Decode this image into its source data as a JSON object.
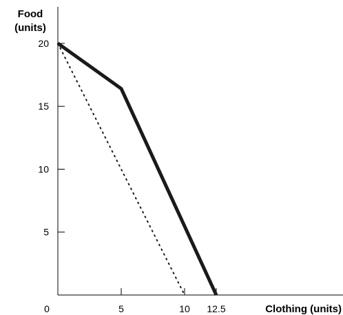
{
  "chart_data": {
    "type": "line",
    "xlabel": "Clothing (units)",
    "ylabel_lines": [
      "Food",
      "(units)"
    ],
    "xlim": [
      0,
      22.5
    ],
    "ylim": [
      0,
      22.9
    ],
    "x_ticks": [
      {
        "value": 0,
        "label": "0"
      },
      {
        "value": 5,
        "label": "5"
      },
      {
        "value": 10,
        "label": "10"
      },
      {
        "value": 12.5,
        "label": "12.5"
      }
    ],
    "y_ticks": [
      {
        "value": 5,
        "label": "5"
      },
      {
        "value": 10,
        "label": "10"
      },
      {
        "value": 15,
        "label": "15"
      },
      {
        "value": 20,
        "label": "20"
      }
    ],
    "series": [
      {
        "style": "solid-thick",
        "color": "#1a1a1a",
        "points": [
          [
            0,
            20
          ],
          [
            5,
            16.4
          ],
          [
            12.5,
            0
          ]
        ]
      },
      {
        "style": "dotted",
        "color": "#1a1a1a",
        "points": [
          [
            0,
            20
          ],
          [
            10,
            0
          ]
        ]
      }
    ],
    "grid": false,
    "legend": "none"
  }
}
